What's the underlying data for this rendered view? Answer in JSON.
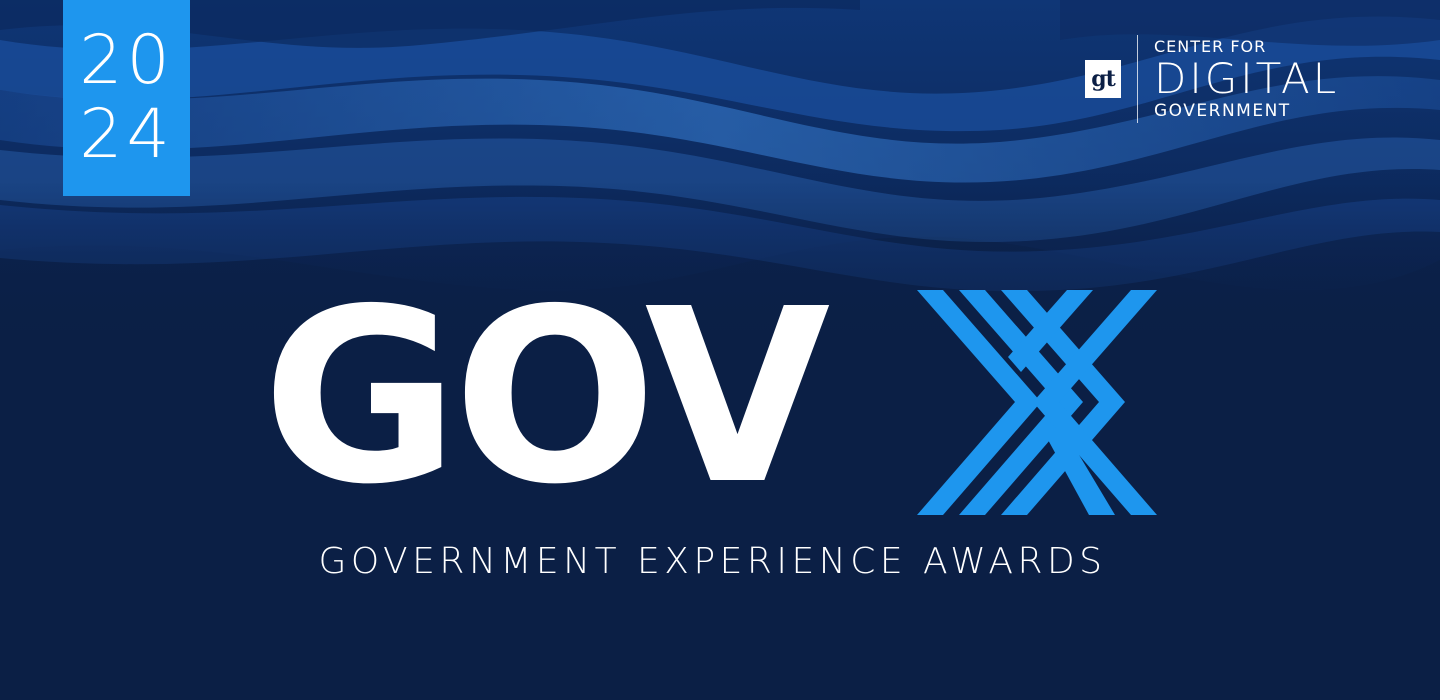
{
  "year_badge": {
    "line1": "20",
    "line2": "24",
    "color": "#1e96ee"
  },
  "org_logo": {
    "mark": "gt",
    "line1": "CENTER FOR",
    "line2": "DIGITAL",
    "line3": "GOVERNMENT"
  },
  "award_logo": {
    "word": "GOV",
    "mark_icon": "x-stripes-icon",
    "mark_color": "#1e96ee",
    "subtitle": "GOVERNMENT EXPERIENCE AWARDS"
  },
  "colors": {
    "background": "#0b1f45",
    "wave_highlight": "#2f6fc4",
    "text": "#ffffff"
  }
}
